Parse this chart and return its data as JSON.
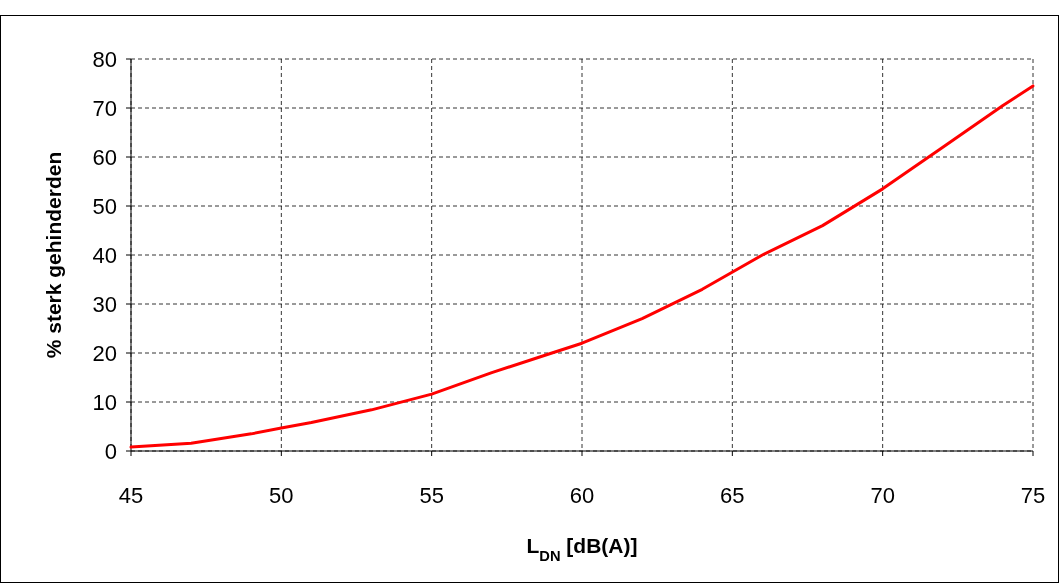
{
  "chart_data": {
    "type": "line",
    "xlabel": "L$_{DN}$ [dB(A)]",
    "ylabel": "% sterk gehinderden",
    "x": [
      45,
      47,
      49,
      50,
      51,
      53,
      55,
      57,
      59,
      60,
      62,
      64,
      66,
      68,
      70,
      72,
      74,
      75
    ],
    "series": [
      {
        "color": "#ff0000",
        "values": [
          0.8,
          1.6,
          3.5,
          4.7,
          5.8,
          8.4,
          11.6,
          16,
          20,
          22,
          27,
          33,
          40,
          46,
          53.5,
          62,
          70.5,
          74.5
        ]
      }
    ],
    "xlim": [
      45,
      75
    ],
    "xticks": [
      45,
      50,
      55,
      60,
      65,
      70,
      75
    ],
    "ylim": [
      0,
      80
    ],
    "yticks": [
      0,
      10,
      20,
      30,
      40,
      50,
      60,
      70,
      80
    ],
    "grid": true,
    "line_style": "solid"
  }
}
